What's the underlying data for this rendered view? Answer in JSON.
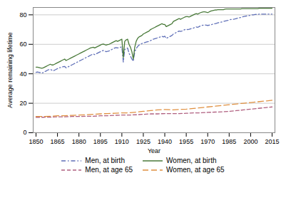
{
  "chart_data": {
    "type": "line",
    "xlabel": "Year",
    "ylabel": "Average remaining lifetime",
    "xlim": [
      1848,
      2017
    ],
    "ylim": [
      0,
      85
    ],
    "xticks": [
      1850,
      1865,
      1880,
      1895,
      1910,
      1925,
      1940,
      1955,
      1970,
      1985,
      2000,
      2015
    ],
    "yticks": [
      0,
      20,
      40,
      60,
      80
    ],
    "grid": true,
    "legend": "bottom",
    "series": [
      {
        "name": "Men, at birth",
        "color": "#6070b8",
        "line_style": "dashdot",
        "x": [
          1850,
          1851,
          1852,
          1853,
          1854,
          1855,
          1856,
          1857,
          1858,
          1859,
          1860,
          1861,
          1862,
          1863,
          1864,
          1865,
          1866,
          1867,
          1868,
          1869,
          1870,
          1871,
          1872,
          1873,
          1874,
          1875,
          1876,
          1877,
          1878,
          1879,
          1880,
          1881,
          1882,
          1883,
          1884,
          1885,
          1886,
          1887,
          1888,
          1889,
          1890,
          1891,
          1892,
          1893,
          1894,
          1895,
          1896,
          1897,
          1898,
          1899,
          1900,
          1901,
          1902,
          1903,
          1904,
          1905,
          1906,
          1907,
          1908,
          1909,
          1910,
          1911,
          1912,
          1913,
          1914,
          1915,
          1916,
          1917,
          1918,
          1919,
          1920,
          1921,
          1922,
          1923,
          1924,
          1925,
          1926,
          1927,
          1928,
          1929,
          1930,
          1931,
          1932,
          1933,
          1934,
          1935,
          1936,
          1937,
          1938,
          1939,
          1940,
          1941,
          1942,
          1943,
          1944,
          1945,
          1946,
          1947,
          1948,
          1949,
          1950,
          1951,
          1952,
          1953,
          1954,
          1955,
          1956,
          1957,
          1958,
          1959,
          1960,
          1961,
          1962,
          1963,
          1964,
          1965,
          1966,
          1967,
          1968,
          1969,
          1970,
          1971,
          1972,
          1973,
          1974,
          1975,
          1976,
          1977,
          1978,
          1979,
          1980,
          1981,
          1982,
          1983,
          1984,
          1985,
          1986,
          1987,
          1988,
          1989,
          1990,
          1991,
          1992,
          1993,
          1994,
          1995,
          1996,
          1997,
          1998,
          1999,
          2000,
          2001,
          2002,
          2003,
          2004,
          2005,
          2006,
          2007,
          2008,
          2009,
          2010,
          2011,
          2012,
          2013,
          2014,
          2015
        ],
        "values": [
          41.0,
          41.2,
          41.0,
          40.8,
          40.5,
          40.8,
          41.5,
          41.8,
          42.5,
          42.8,
          43.0,
          42.5,
          42.0,
          42.5,
          43.0,
          43.5,
          44.0,
          44.2,
          44.5,
          44.8,
          45.0,
          44.0,
          44.5,
          45.0,
          45.5,
          46.0,
          46.5,
          47.0,
          47.5,
          48.0,
          48.5,
          49.0,
          49.5,
          50.0,
          50.5,
          51.0,
          51.5,
          52.0,
          52.5,
          53.0,
          53.5,
          53.0,
          53.5,
          54.0,
          54.5,
          55.0,
          55.5,
          55.8,
          55.5,
          55.0,
          55.2,
          55.5,
          56.0,
          56.5,
          57.0,
          57.5,
          57.8,
          57.5,
          57.8,
          58.0,
          58.2,
          48.0,
          56.5,
          57.0,
          57.5,
          54.0,
          52.0,
          50.0,
          48.5,
          55.0,
          57.0,
          58.5,
          59.5,
          60.0,
          60.5,
          61.0,
          61.2,
          61.5,
          61.8,
          62.0,
          62.5,
          63.0,
          63.5,
          63.8,
          64.0,
          64.5,
          64.8,
          65.0,
          65.5,
          65.0,
          65.5,
          64.0,
          64.5,
          65.0,
          65.5,
          66.0,
          67.0,
          67.5,
          68.0,
          68.5,
          69.0,
          68.8,
          69.0,
          69.5,
          70.0,
          70.2,
          70.0,
          70.2,
          70.5,
          70.8,
          71.0,
          71.5,
          71.8,
          71.5,
          72.0,
          72.5,
          72.8,
          73.0,
          73.2,
          73.0,
          72.8,
          73.0,
          73.2,
          73.5,
          73.8,
          74.0,
          74.2,
          74.5,
          74.8,
          75.0,
          75.2,
          75.5,
          75.8,
          76.0,
          76.2,
          76.5,
          76.8,
          77.0,
          77.0,
          77.2,
          77.5,
          77.8,
          78.0,
          78.2,
          78.5,
          78.8,
          79.0,
          79.2,
          79.4,
          79.5,
          79.8,
          80.0,
          80.0,
          80.2,
          80.3,
          80.3,
          80.5,
          80.5,
          80.5,
          80.5,
          80.5,
          80.5,
          80.5,
          80.5,
          80.5,
          80.5
        ]
      },
      {
        "name": "Women, at birth",
        "color": "#4a7a3a",
        "line_style": "solid",
        "x": [
          1850,
          1851,
          1852,
          1853,
          1854,
          1855,
          1856,
          1857,
          1858,
          1859,
          1860,
          1861,
          1862,
          1863,
          1864,
          1865,
          1866,
          1867,
          1868,
          1869,
          1870,
          1871,
          1872,
          1873,
          1874,
          1875,
          1876,
          1877,
          1878,
          1879,
          1880,
          1881,
          1882,
          1883,
          1884,
          1885,
          1886,
          1887,
          1888,
          1889,
          1890,
          1891,
          1892,
          1893,
          1894,
          1895,
          1896,
          1897,
          1898,
          1899,
          1900,
          1901,
          1902,
          1903,
          1904,
          1905,
          1906,
          1907,
          1908,
          1909,
          1910,
          1911,
          1912,
          1913,
          1914,
          1915,
          1916,
          1917,
          1918,
          1919,
          1920,
          1921,
          1922,
          1923,
          1924,
          1925,
          1926,
          1927,
          1928,
          1929,
          1930,
          1931,
          1932,
          1933,
          1934,
          1935,
          1936,
          1937,
          1938,
          1939,
          1940,
          1941,
          1942,
          1943,
          1944,
          1945,
          1946,
          1947,
          1948,
          1949,
          1950,
          1951,
          1952,
          1953,
          1954,
          1955,
          1956,
          1957,
          1958,
          1959,
          1960,
          1961,
          1962,
          1963,
          1964,
          1965,
          1966,
          1967,
          1968,
          1969,
          1970,
          1971,
          1972,
          1973,
          1974,
          1975,
          1976,
          1977,
          1978,
          1979,
          1980,
          1981,
          1982,
          1983,
          1984,
          1985,
          1986,
          1987,
          1988,
          1989,
          1990,
          1991,
          1992,
          1993,
          1994,
          1995,
          1996,
          1997,
          1998,
          1999,
          2000,
          2001,
          2002,
          2003,
          2004,
          2005,
          2006,
          2007,
          2008,
          2009,
          2010,
          2011,
          2012,
          2013,
          2014,
          2015
        ],
        "values": [
          44.5,
          44.5,
          44.3,
          44.0,
          43.8,
          44.0,
          44.5,
          45.0,
          45.5,
          46.0,
          46.5,
          46.0,
          46.0,
          46.5,
          47.0,
          47.5,
          48.0,
          48.5,
          49.0,
          49.5,
          50.0,
          49.0,
          49.5,
          50.0,
          50.5,
          51.0,
          51.5,
          52.0,
          52.5,
          53.0,
          53.5,
          54.0,
          54.5,
          55.0,
          55.5,
          56.0,
          56.5,
          57.0,
          57.5,
          57.8,
          58.0,
          57.5,
          58.0,
          58.5,
          59.0,
          59.5,
          60.0,
          60.2,
          59.8,
          59.5,
          59.8,
          60.0,
          60.5,
          61.0,
          61.5,
          62.0,
          62.5,
          62.0,
          62.5,
          63.0,
          63.5,
          51.0,
          62.0,
          63.0,
          63.5,
          60.0,
          58.0,
          55.0,
          50.0,
          58.0,
          62.0,
          64.0,
          65.0,
          65.5,
          66.0,
          67.0,
          67.5,
          68.0,
          68.5,
          69.0,
          70.0,
          70.5,
          71.0,
          71.5,
          72.0,
          72.5,
          73.0,
          73.5,
          74.0,
          73.5,
          73.5,
          72.0,
          72.5,
          73.0,
          73.5,
          74.0,
          75.5,
          76.0,
          76.5,
          77.0,
          77.5,
          77.0,
          77.5,
          78.0,
          78.5,
          78.8,
          78.8,
          78.5,
          79.0,
          79.5,
          80.0,
          80.5,
          80.8,
          80.5,
          81.0,
          81.5,
          81.8,
          82.0,
          82.0,
          81.8,
          81.5,
          82.0,
          82.5,
          82.8,
          83.0,
          83.2,
          83.3,
          83.5,
          83.5,
          83.5,
          83.5,
          83.5,
          83.8,
          84.0,
          84.0,
          84.0,
          84.0,
          84.0,
          84.0,
          84.0,
          84.0,
          84.0,
          84.0,
          84.0,
          84.2,
          84.2,
          84.2,
          84.2,
          84.2,
          84.2,
          84.2,
          84.2,
          84.2,
          84.2,
          84.2,
          84.2,
          84.5,
          84.5,
          84.5,
          84.5,
          84.5,
          84.5,
          84.5,
          84.5,
          84.5,
          84.5
        ]
      },
      {
        "name": "Men, at age 65",
        "color": "#b06080",
        "line_style": "dashed",
        "x": [
          1850,
          1855,
          1860,
          1865,
          1870,
          1875,
          1880,
          1885,
          1890,
          1895,
          1900,
          1905,
          1910,
          1915,
          1920,
          1925,
          1930,
          1935,
          1940,
          1945,
          1950,
          1955,
          1960,
          1965,
          1970,
          1975,
          1980,
          1985,
          1990,
          1995,
          2000,
          2005,
          2010,
          2015
        ],
        "values": [
          10.5,
          10.5,
          10.6,
          10.8,
          10.8,
          11.0,
          11.0,
          11.2,
          11.2,
          11.5,
          11.5,
          11.8,
          12.0,
          12.0,
          12.2,
          12.5,
          12.8,
          12.8,
          13.0,
          13.0,
          13.0,
          13.2,
          13.5,
          13.5,
          13.8,
          14.0,
          14.2,
          14.5,
          15.0,
          15.5,
          16.0,
          16.5,
          17.0,
          17.5
        ]
      },
      {
        "name": "Women, at age 65",
        "color": "#e09040",
        "line_style": "longdash",
        "x": [
          1850,
          1855,
          1860,
          1865,
          1870,
          1875,
          1880,
          1885,
          1890,
          1895,
          1900,
          1905,
          1910,
          1915,
          1920,
          1925,
          1930,
          1935,
          1940,
          1945,
          1950,
          1955,
          1960,
          1965,
          1970,
          1975,
          1980,
          1985,
          1990,
          1995,
          2000,
          2005,
          2010,
          2015
        ],
        "values": [
          11.0,
          11.0,
          11.2,
          11.5,
          11.5,
          11.8,
          12.0,
          12.2,
          12.5,
          12.8,
          13.0,
          13.2,
          13.5,
          13.5,
          14.0,
          14.5,
          15.0,
          15.5,
          15.8,
          15.5,
          15.8,
          16.0,
          16.5,
          17.0,
          17.5,
          18.0,
          18.5,
          19.0,
          19.5,
          20.0,
          20.5,
          21.0,
          21.5,
          22.0
        ]
      }
    ]
  }
}
